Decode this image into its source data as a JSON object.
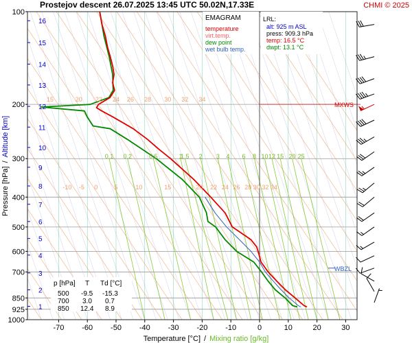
{
  "header": {
    "title": "Prostejov   descent   26.07.2025 13:45 UTC  50.02N,17.33E",
    "credit": "CHMI © 2025"
  },
  "colors": {
    "temperature": "#e00000",
    "virt_temp": "#ff6060",
    "dew_point": "#008800",
    "wet_bulb": "#3060c0",
    "altitude": "#0000cc",
    "isotherm": "#00aa66",
    "dry_adiabat": "#f2b890",
    "moist_adiabat": "#d8d8ee",
    "mixing_ratio": "#88cc33",
    "isobar": "#999999",
    "mxws": "#cc0000",
    "wbzl": "#3060c0"
  },
  "legend": {
    "title": "EMAGRAM",
    "items": [
      {
        "label": "temperature",
        "color": "#e00000"
      },
      {
        "label": "virt.temp.",
        "color": "#ff6060"
      },
      {
        "label": "dew point",
        "color": "#008800"
      },
      {
        "label": "wet bulb temp.",
        "color": "#3060c0"
      }
    ]
  },
  "lrl": {
    "title": "LRL:",
    "lines": [
      {
        "text": "alt: 925 m ASL",
        "color": "#0000cc"
      },
      {
        "text": "press: 909.3 hPa",
        "color": "#000000"
      },
      {
        "text": "temp: 16.5 °C",
        "color": "#e00000"
      },
      {
        "text": "dwpt: 13.1 °C",
        "color": "#008800"
      }
    ]
  },
  "table": {
    "headers": [
      "p [hPa]",
      "T",
      "Td [°C]"
    ],
    "rows": [
      [
        "500",
        "-9.5",
        "-15.3"
      ],
      [
        "700",
        "3.0",
        "0.7"
      ],
      [
        "850",
        "12.4",
        "8.9"
      ]
    ]
  },
  "markers": {
    "mxws": {
      "label": "MXWS",
      "pressure": 200
    },
    "wbzl": {
      "label": "WBZL",
      "pressure": 680
    }
  },
  "chart_data": {
    "type": "line",
    "xlabel": "Temperature [°C]",
    "xlabel_sep": "/",
    "xlabel2": "Mixing ratio [g/kg]",
    "ylabel": "Pressure [hPa]",
    "ylabel_sep": "/",
    "ylabel2": "Altitude [km]",
    "xlim": [
      -80,
      38
    ],
    "ylim": [
      1000,
      100
    ],
    "yscale": "log",
    "x_ticks": [
      -70,
      -60,
      -50,
      -40,
      -30,
      -20,
      -10,
      0,
      10,
      20,
      30
    ],
    "p_ticks": [
      100,
      200,
      300,
      400,
      500,
      600,
      700,
      850,
      925,
      1000
    ],
    "alt_ticks": [
      {
        "km": "16",
        "p": 107
      },
      {
        "km": "15",
        "p": 126
      },
      {
        "km": "14",
        "p": 148
      },
      {
        "km": "13",
        "p": 173
      },
      {
        "km": "12",
        "p": 203
      },
      {
        "km": "11",
        "p": 237
      },
      {
        "km": "10",
        "p": 276
      },
      {
        "km": "9",
        "p": 320
      },
      {
        "km": "8",
        "p": 368
      },
      {
        "km": "7",
        "p": 422
      },
      {
        "km": "6",
        "p": 480
      },
      {
        "km": "5",
        "p": 545
      },
      {
        "km": "4",
        "p": 617
      },
      {
        "km": "3",
        "p": 705
      },
      {
        "km": "2",
        "p": 800
      },
      {
        "km": "1",
        "p": 905
      }
    ],
    "dry_adiabat_labels": [
      {
        "text": "15",
        "p": 200,
        "t": -73
      },
      {
        "text": "20",
        "p": 200,
        "t": -63
      },
      {
        "text": "22",
        "p": 200,
        "t": -56
      },
      {
        "text": "24",
        "p": 200,
        "t": -50
      },
      {
        "text": "26",
        "p": 200,
        "t": -45
      },
      {
        "text": "28",
        "p": 200,
        "t": -39
      },
      {
        "text": "30",
        "p": 200,
        "t": -32
      },
      {
        "text": "32",
        "p": 200,
        "t": -26
      },
      {
        "text": "34",
        "p": 200,
        "t": -20
      }
    ],
    "moist_adiabat_labels": [
      {
        "text": "-10",
        "p": 385,
        "t": -67
      },
      {
        "text": "-5",
        "p": 385,
        "t": -62
      },
      {
        "text": "0",
        "p": 385,
        "t": -57
      },
      {
        "text": "5",
        "p": 385,
        "t": -50
      },
      {
        "text": "10",
        "p": 385,
        "t": -42
      },
      {
        "text": "15",
        "p": 385,
        "t": -32
      },
      {
        "text": "20",
        "p": 385,
        "t": -21
      },
      {
        "text": "22",
        "p": 385,
        "t": -16
      },
      {
        "text": "24",
        "p": 385,
        "t": -12
      },
      {
        "text": "26",
        "p": 385,
        "t": -8
      },
      {
        "text": "28",
        "p": 385,
        "t": -4
      },
      {
        "text": "30",
        "p": 385,
        "t": -1
      },
      {
        "text": "32",
        "p": 385,
        "t": 2
      },
      {
        "text": "34",
        "p": 385,
        "t": 5
      }
    ],
    "mixing_ratio_lines": [
      {
        "text": "0.1",
        "t_top": -52.4,
        "t_bot": -40
      },
      {
        "text": "0.2",
        "t_top": -46.0,
        "t_bot": -33
      },
      {
        "text": "0.5",
        "t_top": -37.0,
        "t_bot": -24
      },
      {
        "text": "1",
        "t_top": -27.5,
        "t_bot": -16
      },
      {
        "text": "1.5",
        "t_top": -26.0,
        "t_bot": -11
      },
      {
        "text": "2",
        "t_top": -20.5,
        "t_bot": -8
      },
      {
        "text": "3",
        "t_top": -14.5,
        "t_bot": -3
      },
      {
        "text": "4",
        "t_top": -11.0,
        "t_bot": 1
      },
      {
        "text": "6",
        "t_top": -5.5,
        "t_bot": 7
      },
      {
        "text": "8",
        "t_top": -1.8,
        "t_bot": 11
      },
      {
        "text": "10",
        "t_top": 1.8,
        "t_bot": 14
      },
      {
        "text": "12",
        "t_top": 4.3,
        "t_bot": 17
      },
      {
        "text": "15",
        "t_top": 7.2,
        "t_bot": 20
      },
      {
        "text": "20",
        "t_top": 11.4,
        "t_bot": 24
      },
      {
        "text": "25",
        "t_top": 14.5,
        "t_bot": 28
      }
    ],
    "series": [
      {
        "name": "temperature",
        "color": "#e00000",
        "points": [
          [
            100,
            -55.7
          ],
          [
            110,
            -54.9
          ],
          [
            120,
            -53.7
          ],
          [
            130,
            -53.0
          ],
          [
            140,
            -52.0
          ],
          [
            150,
            -51.2
          ],
          [
            160,
            -50.7
          ],
          [
            170,
            -51.2
          ],
          [
            180,
            -50.5
          ],
          [
            190,
            -52.1
          ],
          [
            200,
            -56.1
          ],
          [
            205,
            -56.8
          ],
          [
            210,
            -55.0
          ],
          [
            220,
            -51.0
          ],
          [
            240,
            -44.0
          ],
          [
            260,
            -39.0
          ],
          [
            280,
            -35.0
          ],
          [
            300,
            -31.0
          ],
          [
            350,
            -23.0
          ],
          [
            400,
            -17.0
          ],
          [
            450,
            -12.0
          ],
          [
            500,
            -9.5
          ],
          [
            550,
            -3.0
          ],
          [
            580,
            -1.0
          ],
          [
            600,
            -0.5
          ],
          [
            650,
            0.5
          ],
          [
            700,
            3.0
          ],
          [
            750,
            6.0
          ],
          [
            800,
            9.0
          ],
          [
            850,
            12.4
          ],
          [
            900,
            15.5
          ],
          [
            909,
            16.5
          ]
        ]
      },
      {
        "name": "dew point",
        "color": "#008800",
        "points": [
          [
            100,
            -55.7
          ],
          [
            120,
            -54.2
          ],
          [
            140,
            -52.4
          ],
          [
            160,
            -51.2
          ],
          [
            180,
            -51.0
          ],
          [
            190,
            -52.5
          ],
          [
            200,
            -59.0
          ],
          [
            204,
            -76.0
          ],
          [
            210,
            -61.0
          ],
          [
            220,
            -60.0
          ],
          [
            235,
            -58.0
          ],
          [
            240,
            -52.0
          ],
          [
            260,
            -46.0
          ],
          [
            300,
            -36.0
          ],
          [
            350,
            -27.0
          ],
          [
            400,
            -21.0
          ],
          [
            450,
            -18.5
          ],
          [
            480,
            -18.0
          ],
          [
            500,
            -15.3
          ],
          [
            550,
            -12.0
          ],
          [
            600,
            -8.0
          ],
          [
            650,
            -2.0
          ],
          [
            700,
            0.7
          ],
          [
            750,
            3.0
          ],
          [
            800,
            5.5
          ],
          [
            850,
            8.9
          ],
          [
            900,
            11.5
          ],
          [
            909,
            13.1
          ]
        ]
      },
      {
        "name": "wet bulb temp.",
        "color": "#3060c0",
        "points": [
          [
            400,
            -19.0
          ],
          [
            450,
            -15.5
          ],
          [
            500,
            -11.5
          ],
          [
            550,
            -7.0
          ],
          [
            600,
            -3.0
          ],
          [
            650,
            0.0
          ],
          [
            700,
            2.0
          ],
          [
            750,
            4.8
          ],
          [
            800,
            7.5
          ],
          [
            850,
            10.3
          ],
          [
            900,
            13.5
          ],
          [
            909,
            14.3
          ]
        ]
      }
    ],
    "winds": [
      {
        "p": 110,
        "dir": 260,
        "kt": 30
      },
      {
        "p": 140,
        "dir": 255,
        "kt": 35
      },
      {
        "p": 165,
        "dir": 250,
        "kt": 40
      },
      {
        "p": 185,
        "dir": 250,
        "kt": 45
      },
      {
        "p": 200,
        "dir": 245,
        "kt": 55
      },
      {
        "p": 225,
        "dir": 245,
        "kt": 40
      },
      {
        "p": 255,
        "dir": 240,
        "kt": 35
      },
      {
        "p": 285,
        "dir": 235,
        "kt": 30
      },
      {
        "p": 320,
        "dir": 235,
        "kt": 25
      },
      {
        "p": 360,
        "dir": 230,
        "kt": 25
      },
      {
        "p": 400,
        "dir": 230,
        "kt": 20
      },
      {
        "p": 450,
        "dir": 235,
        "kt": 20
      },
      {
        "p": 500,
        "dir": 235,
        "kt": 15
      },
      {
        "p": 560,
        "dir": 240,
        "kt": 15
      },
      {
        "p": 620,
        "dir": 245,
        "kt": 10
      },
      {
        "p": 680,
        "dir": 250,
        "kt": 10
      },
      {
        "p": 750,
        "dir": 300,
        "kt": 10
      },
      {
        "p": 810,
        "dir": 330,
        "kt": 10
      },
      {
        "p": 880,
        "dir": 20,
        "kt": 5
      }
    ]
  }
}
